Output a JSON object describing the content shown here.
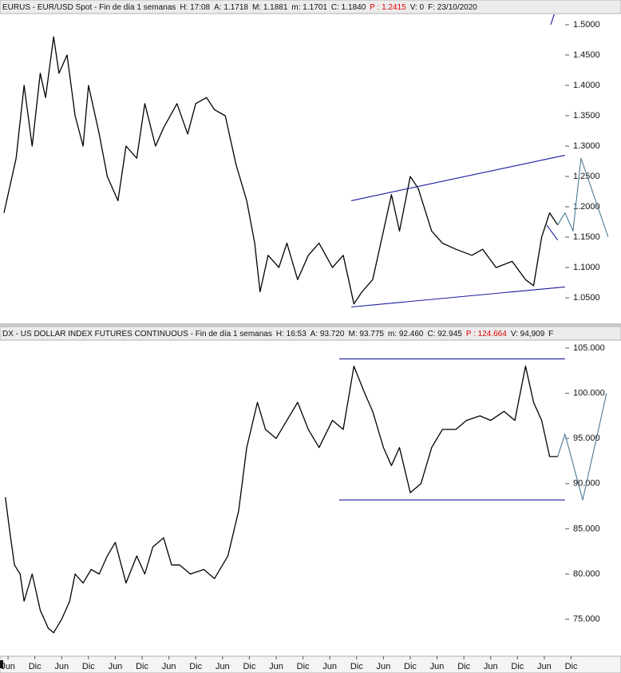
{
  "chart_data": [
    {
      "type": "line",
      "header": [
        {
          "text": "EURUS - EUR/USD Spot - Fin de día 1 semanas",
          "color": "#111111"
        },
        {
          "text": "H: 17:08",
          "color": "#111111"
        },
        {
          "text": "A: 1.1718",
          "color": "#111111"
        },
        {
          "text": "M: 1.1881",
          "color": "#111111"
        },
        {
          "text": "m: 1.1701",
          "color": "#111111"
        },
        {
          "text": "C: 1.1840",
          "color": "#111111"
        },
        {
          "text": "P : 1.2415",
          "color": "#e00000"
        },
        {
          "text": "V: 0",
          "color": "#111111"
        },
        {
          "text": "F: 23/10/2020",
          "color": "#111111"
        }
      ],
      "xlim": [
        -0.3,
        22.86
      ],
      "ylim": [
        1.008,
        1.517
      ],
      "yticks": [
        {
          "value": 1.05,
          "label": "1.0500"
        },
        {
          "value": 1.1,
          "label": "1.1000"
        },
        {
          "value": 1.15,
          "label": "1.1500"
        },
        {
          "value": 1.2,
          "label": "1.2000"
        },
        {
          "value": 1.25,
          "label": "1.2500"
        },
        {
          "value": 1.3,
          "label": "1.3000"
        },
        {
          "value": 1.35,
          "label": "1.3500"
        },
        {
          "value": 1.4,
          "label": "1.4000"
        },
        {
          "value": 1.45,
          "label": "1.4500"
        },
        {
          "value": 1.5,
          "label": "1.5000"
        }
      ],
      "series": [
        {
          "color": "#000000",
          "x": [
            -0.15,
            0.3,
            0.6,
            0.9,
            1.2,
            1.4,
            1.7,
            1.9,
            2.2,
            2.5,
            2.8,
            3.0,
            3.4,
            3.7,
            4.1,
            4.4,
            4.8,
            5.1,
            5.5,
            5.8,
            6.3,
            6.7,
            7.0,
            7.4,
            7.7,
            8.1,
            8.5,
            8.9,
            9.2,
            9.4,
            9.7,
            10.1,
            10.4,
            10.8,
            11.2,
            11.6,
            12.1,
            12.5,
            12.9,
            13.2,
            13.6,
            14.0,
            14.3,
            14.6,
            15.0,
            15.3,
            15.8,
            16.2,
            16.7,
            17.3,
            17.7,
            18.2,
            18.8,
            19.3,
            19.6,
            19.9,
            20.2,
            20.5
          ],
          "values": [
            1.19,
            1.28,
            1.4,
            1.3,
            1.42,
            1.38,
            1.48,
            1.42,
            1.45,
            1.35,
            1.3,
            1.4,
            1.32,
            1.25,
            1.21,
            1.3,
            1.28,
            1.37,
            1.3,
            1.33,
            1.37,
            1.32,
            1.37,
            1.38,
            1.36,
            1.35,
            1.27,
            1.21,
            1.14,
            1.06,
            1.12,
            1.1,
            1.14,
            1.08,
            1.12,
            1.14,
            1.1,
            1.12,
            1.04,
            1.06,
            1.08,
            1.16,
            1.22,
            1.16,
            1.25,
            1.23,
            1.16,
            1.14,
            1.13,
            1.12,
            1.13,
            1.1,
            1.11,
            1.08,
            1.07,
            1.15,
            1.19,
            1.17
          ]
        }
      ],
      "lines": [
        {
          "color": "#1a1aa0",
          "x": [
            12.8,
            20.77
          ],
          "values": [
            1.21,
            1.285
          ]
        },
        {
          "color": "#1a1aa0",
          "x": [
            12.8,
            20.77
          ],
          "values": [
            1.035,
            1.068
          ]
        },
        {
          "color": "#1a1aa0",
          "x": [
            20.09,
            20.5
          ],
          "values": [
            1.17,
            1.145
          ]
        },
        {
          "color": "#1a1aa0",
          "x": [
            20.24,
            20.39
          ],
          "values": [
            1.5,
            1.52
          ]
        },
        {
          "color": "#4a7a96",
          "x": [
            20.5,
            20.77,
            21.07,
            21.37,
            22.38
          ],
          "values": [
            1.17,
            1.19,
            1.16,
            1.28,
            1.15
          ]
        }
      ]
    },
    {
      "type": "line",
      "header": [
        {
          "text": "DX - US DOLLAR INDEX FUTURES CONTINUOUS - Fin de día 1 semanas",
          "color": "#111111"
        },
        {
          "text": "H: 16:53",
          "color": "#111111"
        },
        {
          "text": "A: 93.720",
          "color": "#111111"
        },
        {
          "text": "M: 93.775",
          "color": "#111111"
        },
        {
          "text": "m: 92.460",
          "color": "#111111"
        },
        {
          "text": "C: 92.945",
          "color": "#111111"
        },
        {
          "text": "P : 124.664",
          "color": "#e00000"
        },
        {
          "text": "V: 94,909",
          "color": "#111111"
        },
        {
          "text": "F",
          "color": "#111111"
        }
      ],
      "xlim": [
        -0.3,
        22.86
      ],
      "ylim": [
        70.9,
        105.8
      ],
      "yticks": [
        {
          "value": 75,
          "label": "75.000"
        },
        {
          "value": 80,
          "label": "80.000"
        },
        {
          "value": 85,
          "label": "85.000"
        },
        {
          "value": 90,
          "label": "90.000"
        },
        {
          "value": 95,
          "label": "95.000"
        },
        {
          "value": 100,
          "label": "100.000"
        },
        {
          "value": 105,
          "label": "105.000"
        }
      ],
      "xticks": [
        {
          "value": 0,
          "label": "Jun"
        },
        {
          "value": 1,
          "label": "Dic"
        },
        {
          "value": 2,
          "label": "Jun"
        },
        {
          "value": 3,
          "label": "Dic"
        },
        {
          "value": 4,
          "label": "Jun"
        },
        {
          "value": 5,
          "label": "Dic"
        },
        {
          "value": 6,
          "label": "Jun"
        },
        {
          "value": 7,
          "label": "Dic"
        },
        {
          "value": 8,
          "label": "Jun"
        },
        {
          "value": 9,
          "label": "Dic"
        },
        {
          "value": 10,
          "label": "Jun"
        },
        {
          "value": 11,
          "label": "Dic"
        },
        {
          "value": 12,
          "label": "Jun"
        },
        {
          "value": 13,
          "label": "Dic"
        },
        {
          "value": 14,
          "label": "Jun"
        },
        {
          "value": 15,
          "label": "Dic"
        },
        {
          "value": 16,
          "label": "Jun"
        },
        {
          "value": 17,
          "label": "Dic"
        },
        {
          "value": 18,
          "label": "Jun"
        },
        {
          "value": 19,
          "label": "Dic"
        },
        {
          "value": 20,
          "label": "Jun"
        },
        {
          "value": 21,
          "label": "Dic"
        }
      ],
      "series": [
        {
          "color": "#000000",
          "x": [
            -0.1,
            0.05,
            0.24,
            0.45,
            0.6,
            0.9,
            1.2,
            1.5,
            1.7,
            2.0,
            2.3,
            2.5,
            2.8,
            3.1,
            3.4,
            3.7,
            4.0,
            4.4,
            4.8,
            5.1,
            5.4,
            5.8,
            6.1,
            6.4,
            6.8,
            7.3,
            7.7,
            8.2,
            8.6,
            8.9,
            9.3,
            9.6,
            10.0,
            10.4,
            10.8,
            11.2,
            11.6,
            12.1,
            12.5,
            12.9,
            13.3,
            13.6,
            14.0,
            14.3,
            14.6,
            15.0,
            15.4,
            15.8,
            16.2,
            16.7,
            17.1,
            17.6,
            18.0,
            18.5,
            18.9,
            19.3,
            19.6,
            19.9,
            20.2,
            20.5
          ],
          "values": [
            88.5,
            85,
            81,
            80,
            77,
            80,
            76,
            74,
            73.5,
            75,
            77,
            80,
            79,
            80.5,
            80,
            82,
            83.5,
            79,
            82,
            80,
            83,
            84,
            81,
            81,
            80,
            80.5,
            79.5,
            82,
            87,
            94,
            99,
            96,
            95,
            97,
            99,
            96,
            94,
            97,
            96,
            103,
            100,
            98,
            94,
            92,
            94,
            89,
            90,
            94,
            96,
            96,
            97,
            97.5,
            97,
            98,
            97,
            103,
            99,
            97,
            93,
            93
          ]
        }
      ],
      "lines": [
        {
          "color": "#1a1aa0",
          "x": [
            12.35,
            20.77
          ],
          "values": [
            103.8,
            103.8
          ]
        },
        {
          "color": "#1a1aa0",
          "x": [
            12.35,
            20.77
          ],
          "values": [
            88.2,
            88.2
          ]
        },
        {
          "color": "#4a7a96",
          "x": [
            20.5,
            20.77,
            21.43,
            22.32
          ],
          "values": [
            93,
            95.5,
            88.2,
            100
          ]
        }
      ]
    }
  ]
}
